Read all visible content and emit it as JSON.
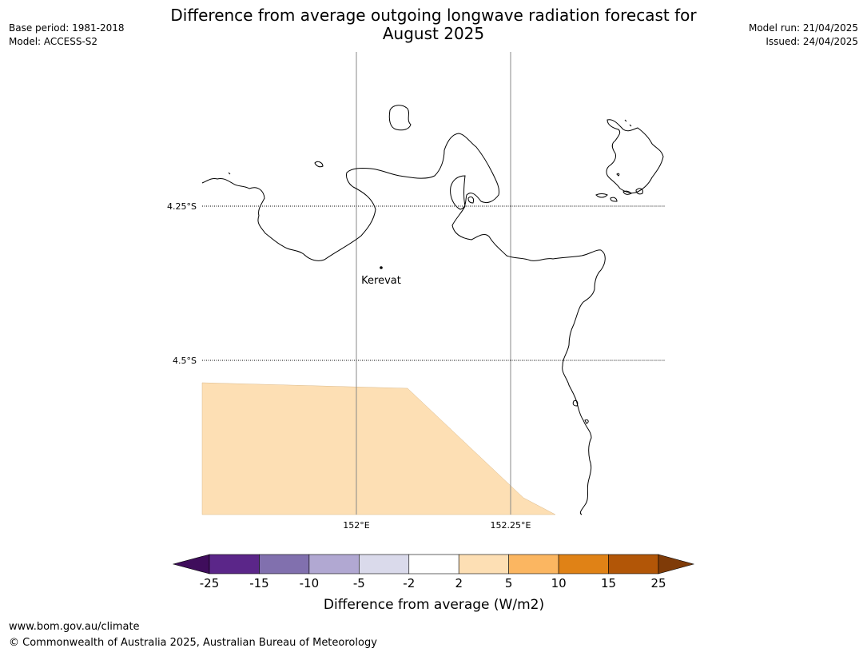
{
  "title_line1": "Difference from average outgoing longwave radiation forecast for",
  "title_line2": "August 2025",
  "meta": {
    "base_period": "Base period: 1981-2018",
    "model": "Model: ACCESS-S2",
    "model_run": "Model run: 21/04/2025",
    "issued": "Issued: 24/04/2025"
  },
  "map": {
    "lat_labels": [
      "4.25°S",
      "4.5°S"
    ],
    "lon_labels": [
      "152°E",
      "152.25°E"
    ],
    "place": "Kerevat",
    "anomaly_region_class": "2 to 5"
  },
  "colorbar": {
    "label": "Difference from average (W/m2)",
    "ticks": [
      "-25",
      "-15",
      "-10",
      "-5",
      "-2",
      "2",
      "5",
      "10",
      "15",
      "25"
    ],
    "colors": [
      "#3f0d5c",
      "#5b2689",
      "#8170ae",
      "#b1a8d2",
      "#dadaeb",
      "#ffffff",
      "#fddfb4",
      "#fbb661",
      "#e08216",
      "#b25607",
      "#7f3b08"
    ]
  },
  "footer": {
    "url": "www.bom.gov.au/climate",
    "copyright": "© Commonwealth of Australia 2025, Australian Bureau of Meteorology"
  }
}
